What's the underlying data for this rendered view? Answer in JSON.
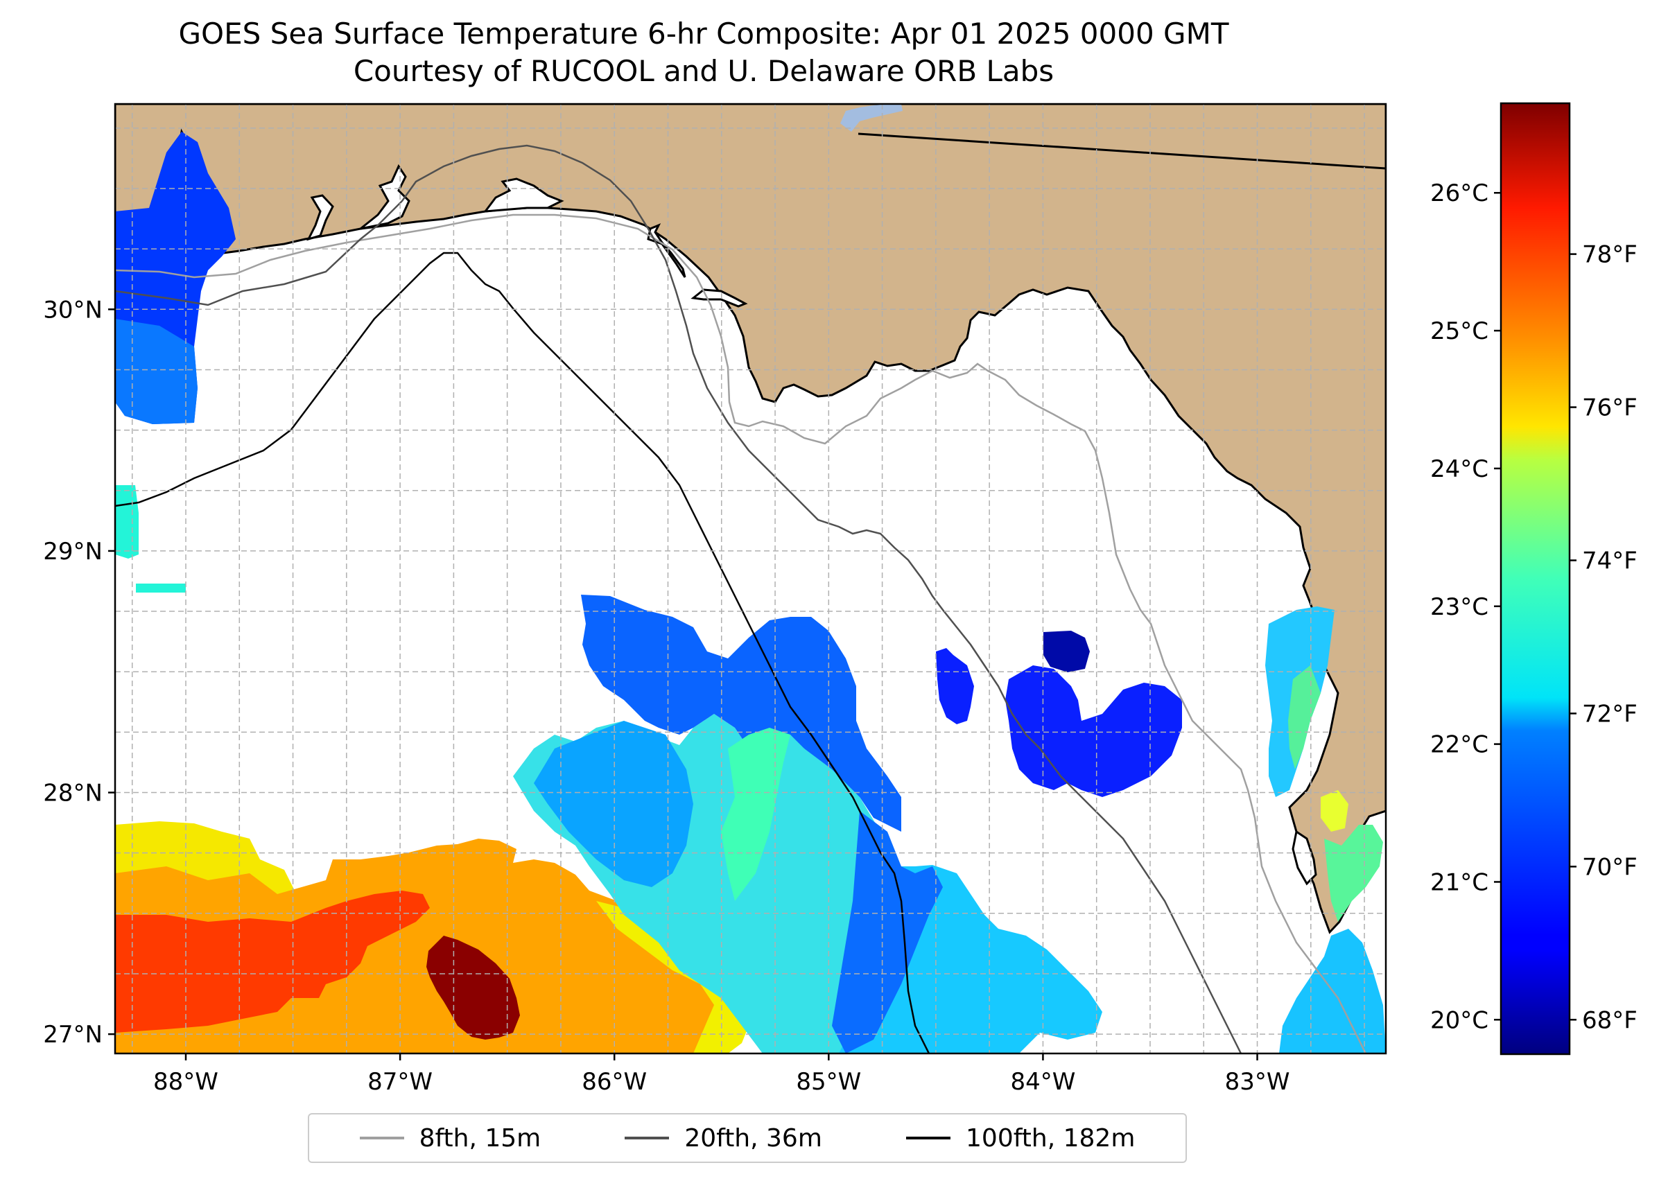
{
  "title": {
    "line1": "GOES Sea Surface Temperature 6-hr Composite: Apr 01 2025 0000 GMT",
    "line2": "Courtesy of RUCOOL and U. Delaware ORB Labs"
  },
  "map": {
    "lon_range": [
      -88.33,
      -82.4
    ],
    "lat_range": [
      26.92,
      30.85
    ],
    "lon_ticks": [
      {
        "value": -88,
        "label": "88°W"
      },
      {
        "value": -87,
        "label": "87°W"
      },
      {
        "value": -86,
        "label": "86°W"
      },
      {
        "value": -85,
        "label": "85°W"
      },
      {
        "value": -84,
        "label": "84°W"
      },
      {
        "value": -83,
        "label": "83°W"
      }
    ],
    "lat_ticks": [
      {
        "value": 27,
        "label": "27°N"
      },
      {
        "value": 28,
        "label": "28°N"
      },
      {
        "value": 29,
        "label": "29°N"
      },
      {
        "value": 30,
        "label": "30°N"
      }
    ],
    "gridlines": "dashed",
    "land_color": "#d2b48c",
    "ocean_color": "#ffffff"
  },
  "colorbar": {
    "colormap": "jet",
    "range_c": [
      19.75,
      26.65
    ],
    "celsius_ticks": [
      {
        "value": 20,
        "label": "20°C"
      },
      {
        "value": 21,
        "label": "21°C"
      },
      {
        "value": 22,
        "label": "22°C"
      },
      {
        "value": 23,
        "label": "23°C"
      },
      {
        "value": 24,
        "label": "24°C"
      },
      {
        "value": 25,
        "label": "25°C"
      },
      {
        "value": 26,
        "label": "26°C"
      }
    ],
    "fahrenheit_ticks": [
      {
        "value": 68,
        "label": "68°F"
      },
      {
        "value": 70,
        "label": "70°F"
      },
      {
        "value": 72,
        "label": "72°F"
      },
      {
        "value": 74,
        "label": "74°F"
      },
      {
        "value": 76,
        "label": "76°F"
      },
      {
        "value": 78,
        "label": "78°F"
      }
    ]
  },
  "legend": {
    "entries": [
      {
        "label": "8fth, 15m",
        "color": "#a0a0a0"
      },
      {
        "label": "20fth, 36m",
        "color": "#505050"
      },
      {
        "label": "100fth, 182m",
        "color": "#000000"
      }
    ]
  }
}
